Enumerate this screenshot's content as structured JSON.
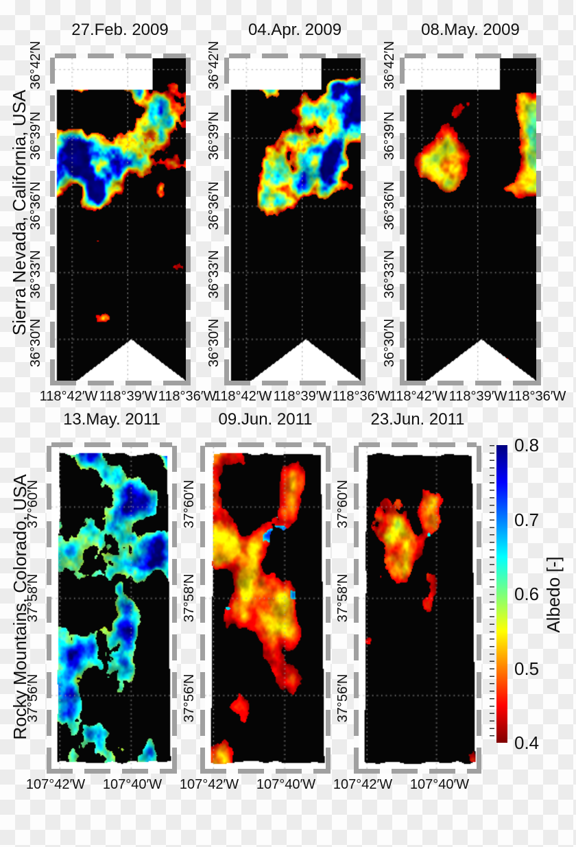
{
  "figure": {
    "colorbar": {
      "axis_label": "Albedo [-]",
      "tick_labels": [
        "0.8",
        "0.7",
        "0.6",
        "0.5",
        "0.4"
      ],
      "min": 0.4,
      "max": 0.8,
      "colormap": "jet reversed (red = 0.4 low albedo, dark blue = 0.8 high albedo)"
    },
    "rows": [
      {
        "region_label": "Sierra Nevada, California, USA",
        "y_tick_labels": [
          "36°42′N",
          "36°39′N",
          "36°36′N",
          "36°33′N",
          "36°30′N"
        ],
        "x_tick_labels": [
          "118°42′W",
          "118°39′W",
          "118°36′W"
        ],
        "panels": [
          {
            "title": "27.Feb. 2009",
            "appearance": "dense blue/cyan high-albedo snow over northern half, orange low-albedo fringes, black lower half with sparse speckles"
          },
          {
            "title": "04.Apr. 2009",
            "appearance": "blue/cyan snow cover over northern half, black south with scattered colored speckles near bottom"
          },
          {
            "title": "08.May. 2009",
            "appearance": "orange/yellow low-albedo remnant snow in northern third, mostly black elsewhere"
          }
        ]
      },
      {
        "region_label": "Rocky Mountains, Colorado, USA",
        "y_tick_labels": [
          "37°60′N",
          "37°58′N",
          "37°56′N"
        ],
        "x_tick_labels": [
          "107°42′W",
          "107°40′W"
        ],
        "panels": [
          {
            "title": "13.May. 2011",
            "appearance": "nearly complete blue high-albedo snow cover with black gaps"
          },
          {
            "title": "09.Jun. 2011",
            "appearance": "red/orange low-albedo cover with blue streaks along valleys, black patches and black eastern edge"
          },
          {
            "title": "23.Jun. 2011",
            "appearance": "mostly black with red/orange/yellow remnant patches left of center"
          }
        ]
      }
    ]
  }
}
